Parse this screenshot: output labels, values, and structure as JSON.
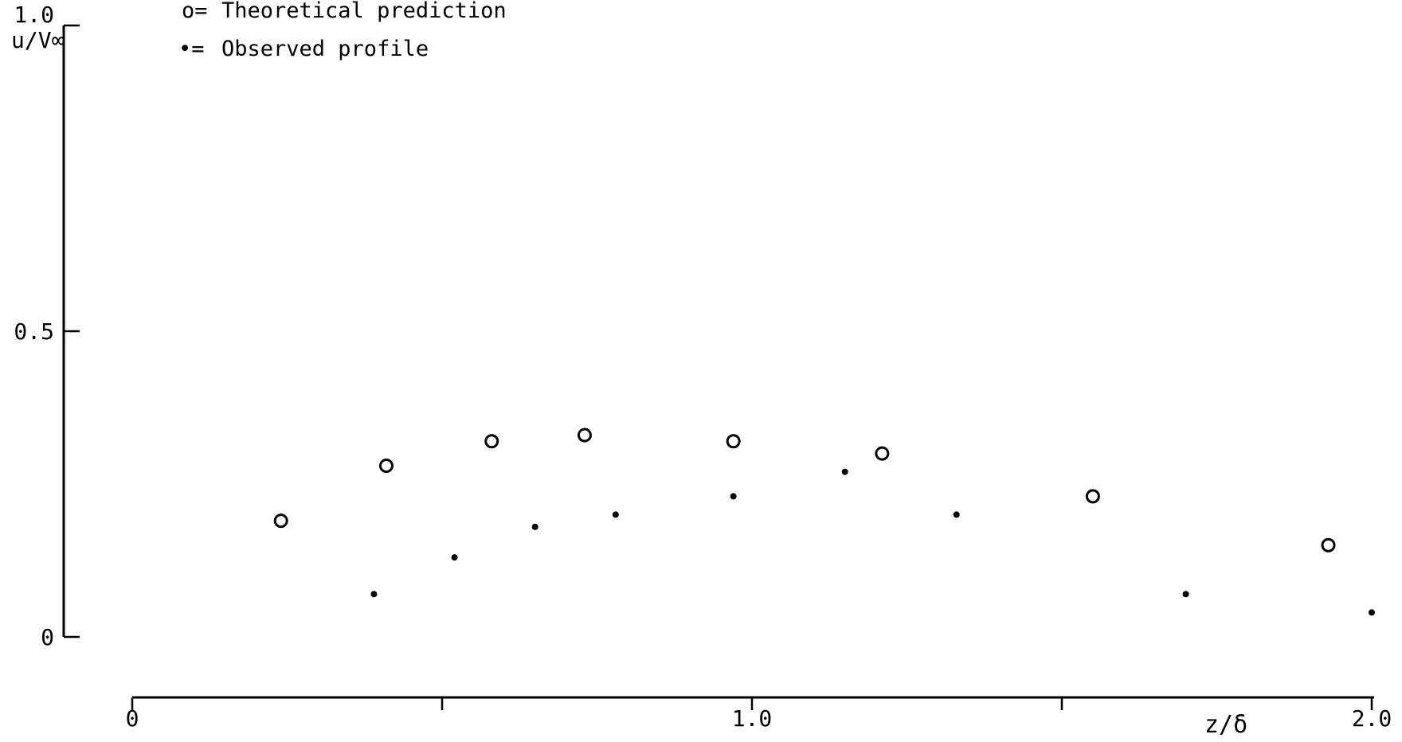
{
  "chart_data": {
    "type": "scatter",
    "title": "",
    "xlabel": "z/δ",
    "ylabel": "u/V∞",
    "xlim": [
      0,
      2.0
    ],
    "ylim": [
      0,
      1.0
    ],
    "x_ticks": [
      0,
      0.5,
      1.0,
      1.5,
      2.0
    ],
    "x_tick_labels": [
      "0",
      "",
      "1.0",
      "",
      "2.0"
    ],
    "y_ticks": [
      0,
      0.5,
      1.0
    ],
    "y_tick_labels": [
      "0",
      "0.5",
      "1.0"
    ],
    "legend": [
      {
        "marker": "o=",
        "label": "Theoretical prediction"
      },
      {
        "marker": "•=",
        "label": "Observed profile"
      }
    ],
    "legend_position": "top-left",
    "grid": false,
    "series": [
      {
        "name": "Theoretical prediction",
        "marker": "open-circle",
        "x": [
          0.24,
          0.41,
          0.58,
          0.73,
          0.97,
          1.21,
          1.55,
          1.93
        ],
        "y": [
          0.19,
          0.28,
          0.32,
          0.33,
          0.32,
          0.3,
          0.23,
          0.15
        ]
      },
      {
        "name": "Observed profile",
        "marker": "filled-dot",
        "x": [
          0.39,
          0.52,
          0.65,
          0.78,
          0.97,
          1.15,
          1.33,
          1.7,
          2.0
        ],
        "y": [
          0.07,
          0.13,
          0.18,
          0.2,
          0.23,
          0.27,
          0.2,
          0.07,
          0.04
        ]
      }
    ]
  }
}
